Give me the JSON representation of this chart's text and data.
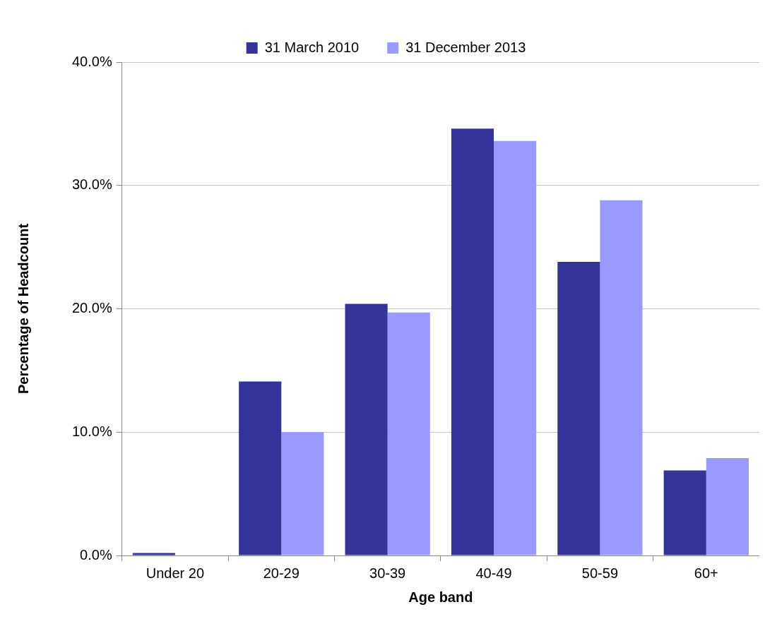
{
  "chart_data": {
    "type": "bar",
    "xlabel": "Age band",
    "ylabel": "Percentage of Headcount",
    "categories": [
      "Under 20",
      "20-29",
      "30-39",
      "40-49",
      "50-59",
      "60+"
    ],
    "series": [
      {
        "name": "31 March 2010",
        "color": "#333399",
        "values": [
          0.2,
          14.1,
          20.4,
          34.6,
          23.8,
          6.9
        ]
      },
      {
        "name": "31 December 2013",
        "color": "#9999ff",
        "values": [
          0,
          10.0,
          19.7,
          33.6,
          28.8,
          7.9
        ]
      }
    ],
    "ylim": [
      0,
      40
    ],
    "yticks": [
      {
        "value": 0,
        "label": "0.0%"
      },
      {
        "value": 10,
        "label": "10.0%"
      },
      {
        "value": 20,
        "label": "20.0%"
      },
      {
        "value": 30,
        "label": "30.0%"
      },
      {
        "value": 40,
        "label": "40.0%"
      }
    ],
    "grid": "y",
    "legend": "top"
  }
}
